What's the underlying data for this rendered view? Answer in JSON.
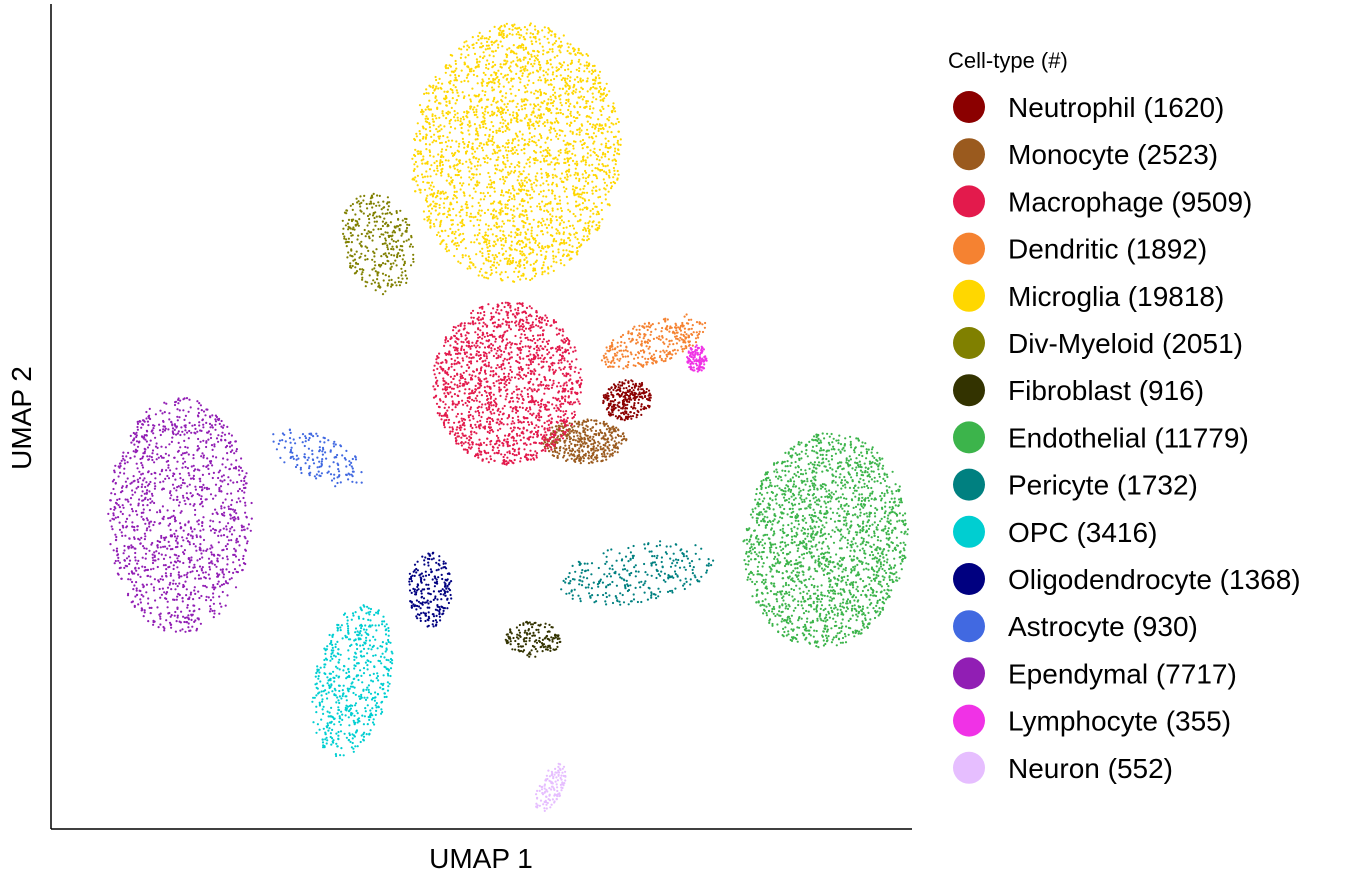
{
  "chart_data": {
    "type": "scatter",
    "title": "",
    "xlabel": "UMAP 1",
    "ylabel": "UMAP 2",
    "xlim": [
      0,
      100
    ],
    "ylim": [
      0,
      100
    ],
    "legend": {
      "title": "Cell-type (#)",
      "position": "right"
    },
    "series": [
      {
        "name": "Neutrophil (1620)",
        "count": 1620,
        "color": "#8b0000",
        "center": [
          67,
          52
        ]
      },
      {
        "name": "Monocyte (2523)",
        "count": 2523,
        "color": "#9a5a1e",
        "center": [
          62,
          47
        ]
      },
      {
        "name": "Macrophage (9509)",
        "count": 9509,
        "color": "#e31a4c",
        "center": [
          53,
          54
        ]
      },
      {
        "name": "Dendritic (1892)",
        "count": 1892,
        "color": "#f58231",
        "center": [
          70,
          59
        ]
      },
      {
        "name": "Microglia (19818)",
        "count": 19818,
        "color": "#ffd700",
        "center": [
          54,
          82
        ]
      },
      {
        "name": "Div-Myeloid (2051)",
        "count": 2051,
        "color": "#808000",
        "center": [
          38,
          71
        ]
      },
      {
        "name": "Fibroblast (916)",
        "count": 916,
        "color": "#333300",
        "center": [
          56,
          23
        ]
      },
      {
        "name": "Endothelial (11779)",
        "count": 11779,
        "color": "#3cb44b",
        "center": [
          90,
          35
        ]
      },
      {
        "name": "Pericyte (1732)",
        "count": 1732,
        "color": "#008080",
        "center": [
          68,
          31
        ]
      },
      {
        "name": "OPC (3416)",
        "count": 3416,
        "color": "#00ced1",
        "center": [
          35,
          18
        ]
      },
      {
        "name": "Oligodendrocyte (1368)",
        "count": 1368,
        "color": "#000080",
        "center": [
          44,
          29
        ]
      },
      {
        "name": "Astrocyte (930)",
        "count": 930,
        "color": "#4169e1",
        "center": [
          31,
          45
        ]
      },
      {
        "name": "Ependymal (7717)",
        "count": 7717,
        "color": "#911eb4",
        "center": [
          15,
          38
        ]
      },
      {
        "name": "Lymphocyte (355)",
        "count": 355,
        "color": "#f032e6",
        "center": [
          75,
          57
        ]
      },
      {
        "name": "Neuron (552)",
        "count": 552,
        "color": "#e6beff",
        "center": [
          58,
          5
        ]
      }
    ]
  }
}
